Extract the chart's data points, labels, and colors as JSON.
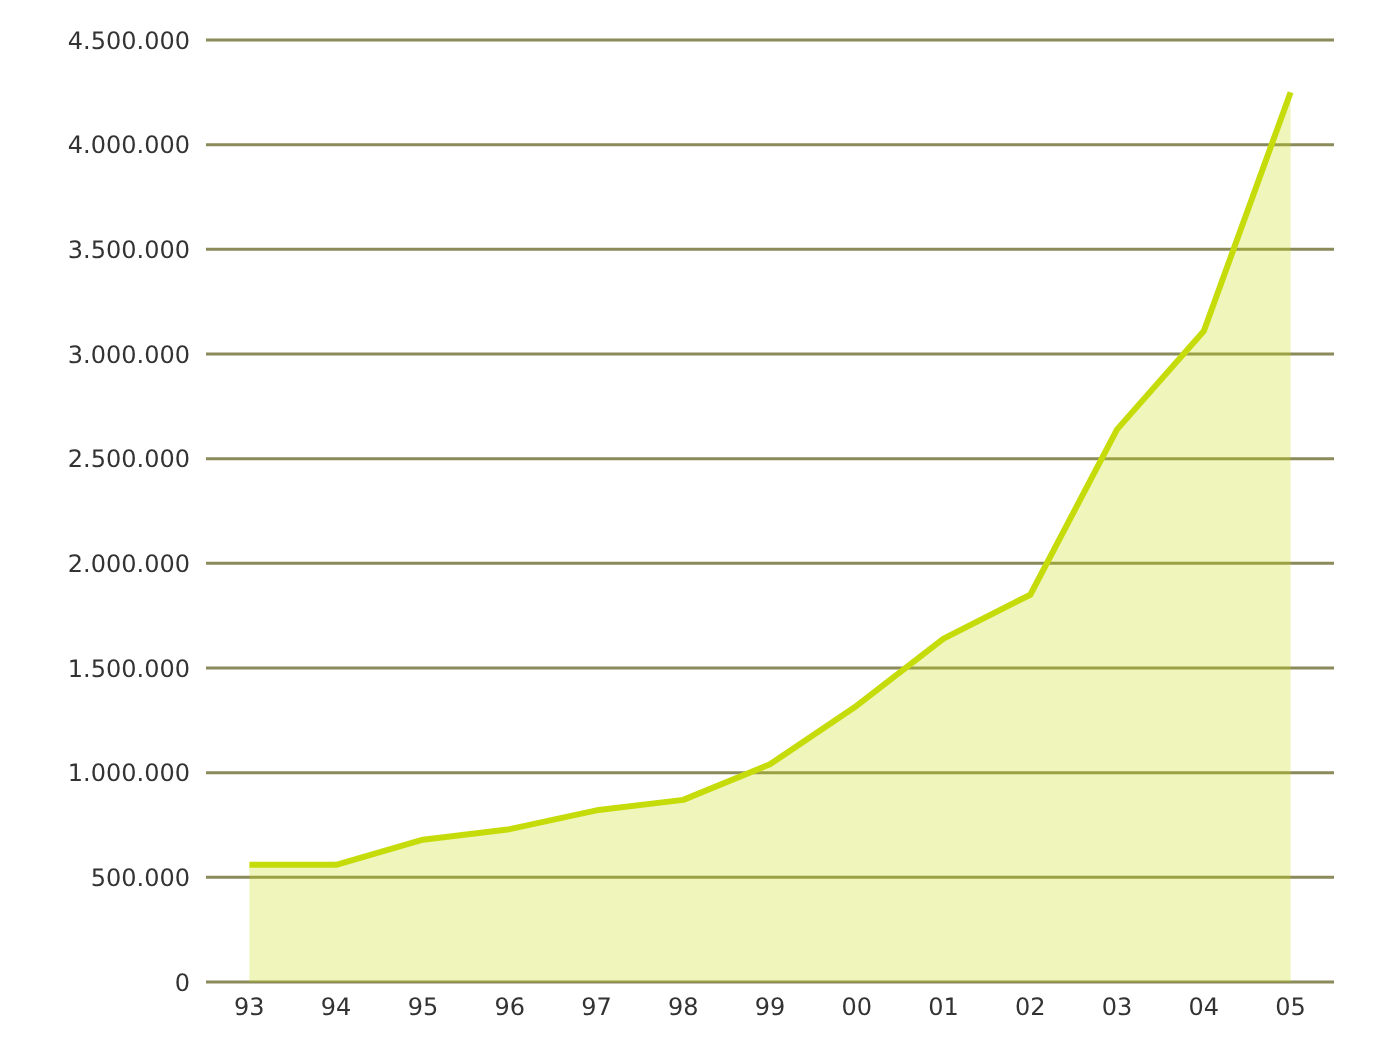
{
  "chart_data": {
    "type": "area",
    "categories": [
      "93",
      "94",
      "95",
      "96",
      "97",
      "98",
      "99",
      "00",
      "01",
      "02",
      "03",
      "04",
      "05"
    ],
    "series": [
      {
        "color": "#c5dc0a",
        "values": [
          560000,
          560000,
          680000,
          730000,
          820000,
          870000,
          1040000,
          1320000,
          1640000,
          1850000,
          2640000,
          3110000,
          4250000
        ]
      }
    ],
    "ylim": [
      0,
      4500000
    ],
    "yticks": [
      {
        "value": 0,
        "label": "0"
      },
      {
        "value": 500000,
        "label": "500.000"
      },
      {
        "value": 1000000,
        "label": "1.000.000"
      },
      {
        "value": 1500000,
        "label": "1.500.000"
      },
      {
        "value": 2000000,
        "label": "2.000.000"
      },
      {
        "value": 2500000,
        "label": "2.500.000"
      },
      {
        "value": 3000000,
        "label": "3.000.000"
      },
      {
        "value": 3500000,
        "label": "3.500.000"
      },
      {
        "value": 4000000,
        "label": "4.000.000"
      },
      {
        "value": 4500000,
        "label": "4.500.000"
      }
    ],
    "grid": "y"
  }
}
